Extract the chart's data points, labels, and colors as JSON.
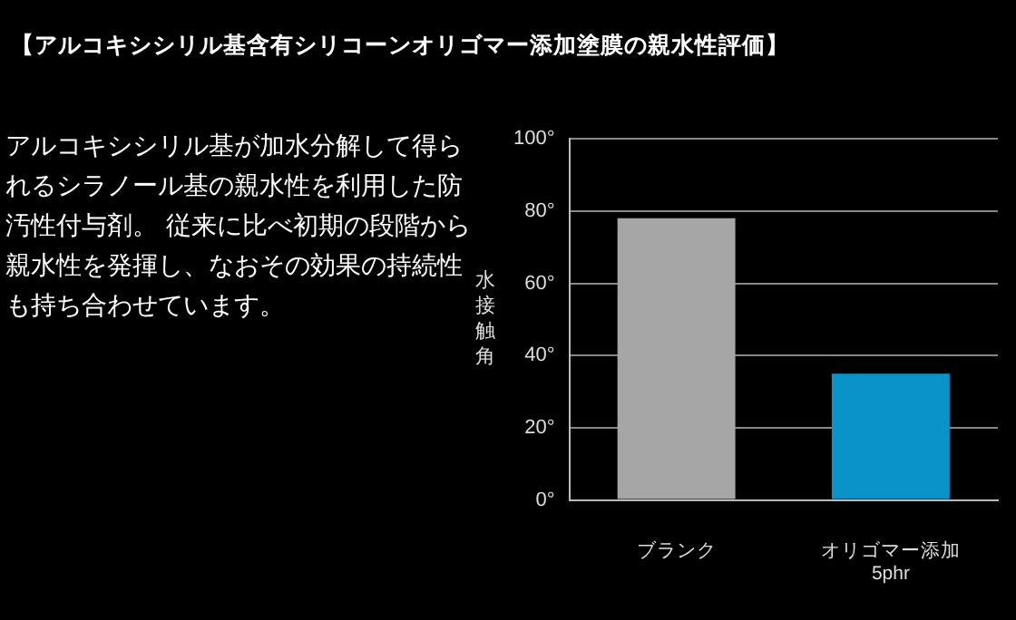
{
  "chart_data": {
    "type": "bar",
    "title": "【アルコキシシリル基含有シリコーンオリゴマー添加塗膜の親水性評価】",
    "annotations": [
      "アルコキシシリル基が加水分解して得られるシラノール基の親水性を利用した防汚性付与剤。 従来に比べ初期の段階から親水性を発揮し、なおその効果の持続性も持ち合わせています。"
    ],
    "ylabel": "水接触角",
    "categories": [
      "ブランク",
      "オリゴマー添加\n5phr"
    ],
    "values": [
      78,
      35
    ],
    "colors": [
      "#a6a6a6",
      "#0a93c8"
    ],
    "ylim": [
      0,
      100
    ],
    "yticks": [
      {
        "value": 0,
        "label": "0°"
      },
      {
        "value": 20,
        "label": "20°"
      },
      {
        "value": 40,
        "label": "40°"
      },
      {
        "value": 60,
        "label": "60°"
      },
      {
        "value": 80,
        "label": "80°"
      },
      {
        "value": 100,
        "label": "100°"
      }
    ],
    "grid": "y",
    "legend": false
  }
}
